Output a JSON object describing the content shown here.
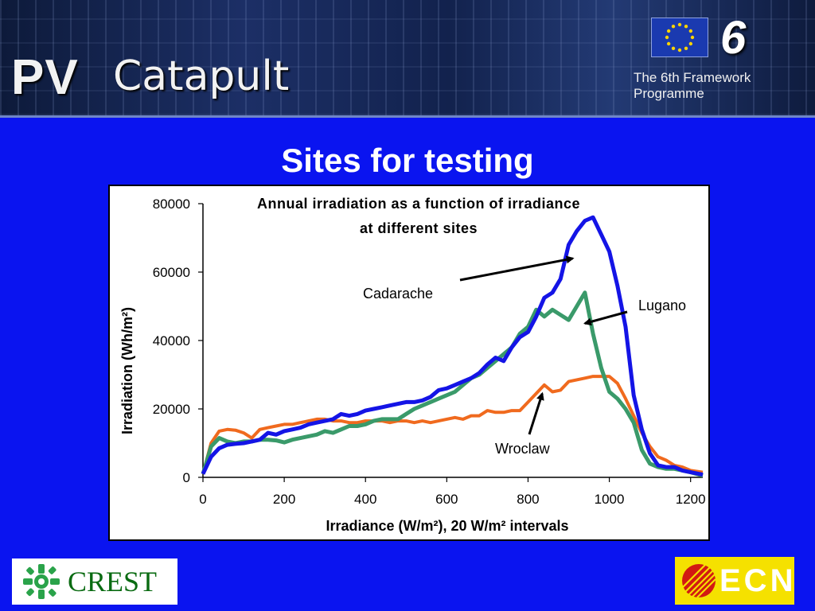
{
  "header": {
    "brand_pv": "PV",
    "brand_catapult": "Catapult",
    "programme_number": "6",
    "programme_label": "The 6th Framework Programme"
  },
  "slide": {
    "title": "Sites for testing"
  },
  "chart_data": {
    "type": "line",
    "title_line1": "Annual irradiation as a function of irradiance",
    "title_line2": "at different sites",
    "xlabel": "Irradiance (W/m²), 20 W/m² intervals",
    "ylabel": "Irradiation (Wh/m²)",
    "xlim": [
      0,
      1230
    ],
    "ylim": [
      0,
      80000
    ],
    "xticks": [
      "0",
      "200",
      "400",
      "600",
      "800",
      "1000",
      "1200"
    ],
    "yticks": [
      "0",
      "20000",
      "40000",
      "60000",
      "80000"
    ],
    "grid": false,
    "series": [
      {
        "name": "Cadarache",
        "color": "#1414e6",
        "x": [
          0,
          20,
          40,
          60,
          80,
          100,
          120,
          140,
          160,
          180,
          200,
          220,
          240,
          260,
          280,
          300,
          320,
          340,
          360,
          380,
          400,
          420,
          440,
          460,
          480,
          500,
          520,
          540,
          560,
          580,
          600,
          620,
          640,
          660,
          680,
          700,
          720,
          740,
          760,
          780,
          800,
          820,
          840,
          860,
          880,
          900,
          920,
          940,
          960,
          980,
          1000,
          1020,
          1040,
          1060,
          1080,
          1100,
          1120,
          1140,
          1160,
          1180,
          1200,
          1230
        ],
        "y": [
          1000,
          6000,
          8500,
          9500,
          9800,
          10000,
          10500,
          11000,
          13000,
          12500,
          13500,
          14000,
          14500,
          15500,
          16000,
          16500,
          17000,
          18500,
          18000,
          18500,
          19500,
          20000,
          20500,
          21000,
          21500,
          22000,
          22000,
          22500,
          23500,
          25500,
          26000,
          27000,
          28000,
          29000,
          30500,
          33000,
          35000,
          34000,
          38000,
          41000,
          42500,
          47000,
          52500,
          54000,
          58000,
          68000,
          72000,
          75000,
          76000,
          71000,
          66000,
          56000,
          44000,
          24000,
          14000,
          7000,
          3500,
          3000,
          3000,
          2000,
          1500,
          800
        ]
      },
      {
        "name": "Lugano",
        "color": "#3a9a6a",
        "x": [
          0,
          20,
          40,
          60,
          80,
          100,
          120,
          140,
          160,
          180,
          200,
          220,
          240,
          260,
          280,
          300,
          320,
          340,
          360,
          380,
          400,
          420,
          440,
          460,
          480,
          500,
          520,
          540,
          560,
          580,
          600,
          620,
          640,
          660,
          680,
          700,
          720,
          740,
          760,
          780,
          800,
          820,
          840,
          860,
          880,
          900,
          920,
          940,
          960,
          980,
          1000,
          1020,
          1040,
          1060,
          1080,
          1100,
          1120,
          1140,
          1160,
          1180,
          1200,
          1230
        ],
        "y": [
          1000,
          9000,
          11500,
          10500,
          10000,
          10500,
          10500,
          11000,
          11000,
          10800,
          10200,
          11000,
          11500,
          12000,
          12500,
          13500,
          13000,
          14000,
          15000,
          15000,
          15500,
          16500,
          17000,
          17000,
          17000,
          18500,
          20000,
          21000,
          22000,
          23000,
          24000,
          25000,
          27000,
          29000,
          30000,
          32000,
          34000,
          36000,
          38000,
          42000,
          44000,
          49000,
          47000,
          49000,
          47500,
          46000,
          50000,
          54000,
          42000,
          32000,
          25000,
          23000,
          20000,
          16000,
          8000,
          4000,
          3000,
          2500,
          2500,
          2000,
          1500,
          500
        ]
      },
      {
        "name": "Wroclaw",
        "color": "#f06a1e",
        "x": [
          0,
          20,
          40,
          60,
          80,
          100,
          120,
          140,
          160,
          180,
          200,
          220,
          240,
          260,
          280,
          300,
          320,
          340,
          360,
          380,
          400,
          420,
          440,
          460,
          480,
          500,
          520,
          540,
          560,
          580,
          600,
          620,
          640,
          660,
          680,
          700,
          720,
          740,
          760,
          780,
          800,
          820,
          840,
          860,
          880,
          900,
          920,
          940,
          960,
          980,
          1000,
          1020,
          1040,
          1060,
          1080,
          1100,
          1120,
          1140,
          1160,
          1180,
          1200,
          1230
        ],
        "y": [
          1000,
          10000,
          13500,
          14000,
          13800,
          13000,
          11500,
          14000,
          14500,
          15000,
          15500,
          15500,
          16000,
          16500,
          17000,
          17000,
          16500,
          16500,
          16000,
          16000,
          16500,
          16500,
          16500,
          16000,
          16500,
          16500,
          16000,
          16500,
          16000,
          16500,
          17000,
          17500,
          17000,
          18000,
          18000,
          19500,
          19000,
          19000,
          19500,
          19500,
          22000,
          24500,
          27000,
          25000,
          25500,
          28000,
          28500,
          29000,
          29500,
          29500,
          29500,
          27500,
          23000,
          18000,
          13000,
          9000,
          6000,
          5000,
          3500,
          3000,
          2000,
          1500
        ]
      }
    ],
    "annotations": [
      {
        "text": "Cadarache",
        "series": "Cadarache",
        "arrow_to": [
          910,
          64000
        ]
      },
      {
        "text": "Lugano",
        "series": "Lugano",
        "arrow_to": [
          940,
          45000
        ]
      },
      {
        "text": "Wroclaw",
        "series": "Wroclaw",
        "arrow_to": [
          835,
          24500
        ]
      }
    ]
  },
  "footer": {
    "left_logo_text": "CREST",
    "right_logo_text": "ECN"
  },
  "colors": {
    "slide_background": "#0a14f0",
    "crest_green": "#0a6b12",
    "ecn_yellow": "#f5e100",
    "ecn_red": "#d21a12"
  }
}
